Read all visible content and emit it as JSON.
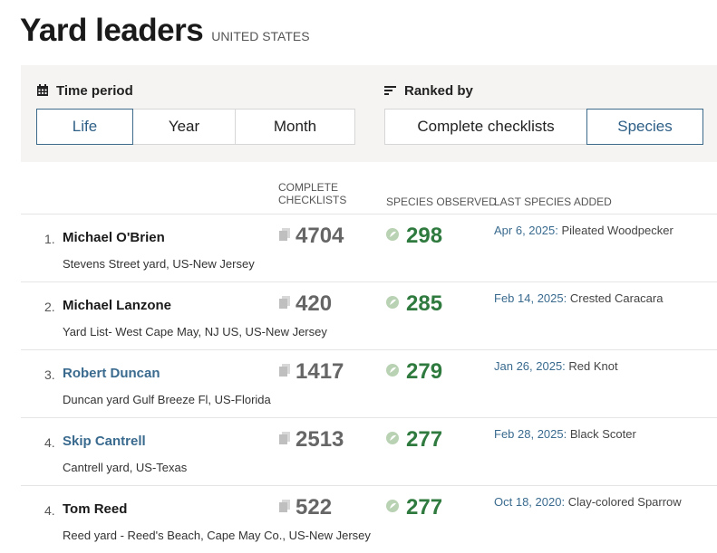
{
  "header": {
    "title": "Yard leaders",
    "subtitle": "UNITED STATES"
  },
  "filters": {
    "time_period": {
      "label": "Time period",
      "options": [
        "Life",
        "Year",
        "Month"
      ],
      "selected": "Life"
    },
    "ranked_by": {
      "label": "Ranked by",
      "options": [
        "Complete checklists",
        "Species"
      ],
      "selected": "Species"
    }
  },
  "columns": {
    "checklists_line1": "COMPLETE",
    "checklists_line2": "CHECKLISTS",
    "species": "SPECIES OBSERVED",
    "last": "LAST SPECIES ADDED"
  },
  "rows": [
    {
      "rank": "1.",
      "name": "Michael O'Brien",
      "is_link": false,
      "yard": "Stevens Street yard, US-New Jersey",
      "checklists": "4704",
      "species": "298",
      "date": "Apr 6, 2025:",
      "last_species": "Pileated Woodpecker"
    },
    {
      "rank": "2.",
      "name": "Michael Lanzone",
      "is_link": false,
      "yard": "Yard List- West Cape May, NJ US, US-New Jersey",
      "checklists": "420",
      "species": "285",
      "date": "Feb 14, 2025:",
      "last_species": "Crested Caracara"
    },
    {
      "rank": "3.",
      "name": "Robert Duncan",
      "is_link": true,
      "yard": "Duncan yard Gulf Breeze Fl, US-Florida",
      "checklists": "1417",
      "species": "279",
      "date": "Jan 26, 2025:",
      "last_species": "Red Knot"
    },
    {
      "rank": "4.",
      "name": "Skip Cantrell",
      "is_link": true,
      "yard": "Cantrell yard, US-Texas",
      "checklists": "2513",
      "species": "277",
      "date": "Feb 28, 2025:",
      "last_species": "Black Scoter"
    },
    {
      "rank": "4.",
      "name": "Tom Reed",
      "is_link": false,
      "yard": "Reed yard - Reed's Beach, Cape May Co., US-New Jersey",
      "checklists": "522",
      "species": "277",
      "date": "Oct 18, 2020:",
      "last_species": "Clay-colored Sparrow"
    }
  ],
  "icons": {
    "calendar": "calendar-icon",
    "sort": "sort-icon",
    "checklist": "checklist-icon",
    "species": "species-icon"
  },
  "colors": {
    "accent": "#2e5f86",
    "species_green": "#2f7a3e",
    "link": "#3a6b8f"
  }
}
